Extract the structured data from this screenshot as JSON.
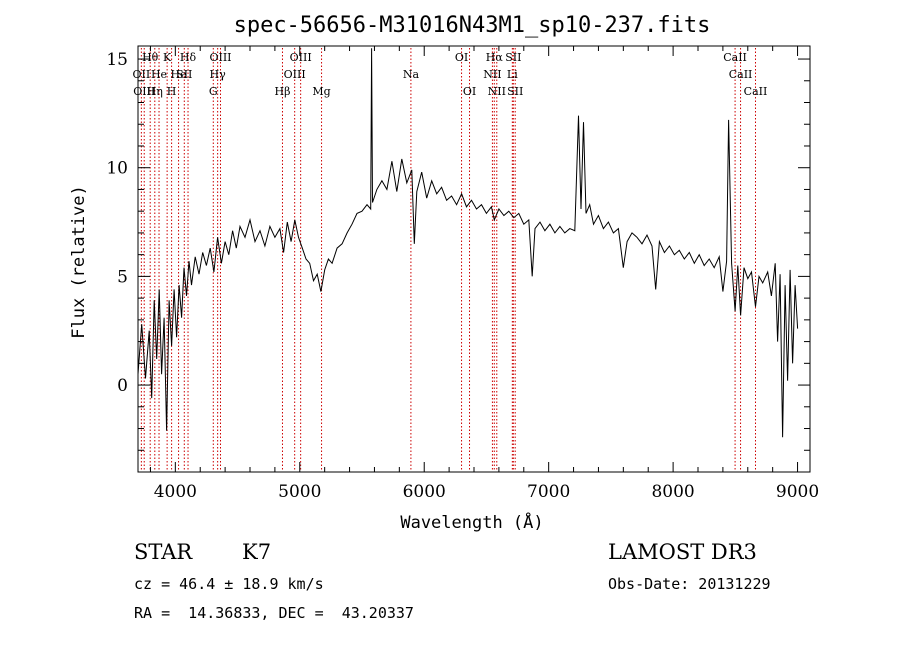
{
  "chart_data": {
    "type": "line",
    "title": "spec-56656-M31016N43M1_sp10-237.fits",
    "xlabel": "Wavelength (Å)",
    "ylabel": "Flux (relative)",
    "xlim": [
      3700,
      9100
    ],
    "ylim": [
      -4,
      15.6
    ],
    "xticks": [
      4000,
      5000,
      6000,
      7000,
      8000,
      9000
    ],
    "xtick_labels": [
      "4000",
      "5000",
      "6000",
      "7000",
      "8000",
      "9000"
    ],
    "yticks": [
      0,
      5,
      10,
      15
    ],
    "ytick_labels": [
      "0",
      "5",
      "10",
      "15"
    ],
    "series": [
      {
        "name": "spectrum",
        "color": "#000000",
        "points": [
          [
            3700,
            0.5
          ],
          [
            3730,
            2.8
          ],
          [
            3760,
            0.3
          ],
          [
            3790,
            2.5
          ],
          [
            3810,
            -0.6
          ],
          [
            3830,
            3.9
          ],
          [
            3850,
            1.2
          ],
          [
            3870,
            4.4
          ],
          [
            3890,
            0.5
          ],
          [
            3910,
            3.1
          ],
          [
            3930,
            -2.1
          ],
          [
            3950,
            3.9
          ],
          [
            3970,
            1.8
          ],
          [
            3990,
            4.4
          ],
          [
            4010,
            2.2
          ],
          [
            4030,
            4.6
          ],
          [
            4050,
            3.1
          ],
          [
            4070,
            5.4
          ],
          [
            4090,
            4.1
          ],
          [
            4110,
            5.7
          ],
          [
            4130,
            4.6
          ],
          [
            4160,
            5.9
          ],
          [
            4190,
            5.1
          ],
          [
            4220,
            6.1
          ],
          [
            4250,
            5.5
          ],
          [
            4280,
            6.3
          ],
          [
            4310,
            5.2
          ],
          [
            4340,
            6.8
          ],
          [
            4370,
            5.6
          ],
          [
            4400,
            6.6
          ],
          [
            4430,
            6.0
          ],
          [
            4460,
            7.1
          ],
          [
            4490,
            6.3
          ],
          [
            4520,
            7.3
          ],
          [
            4560,
            6.8
          ],
          [
            4600,
            7.6
          ],
          [
            4640,
            6.6
          ],
          [
            4680,
            7.1
          ],
          [
            4720,
            6.4
          ],
          [
            4760,
            7.3
          ],
          [
            4800,
            6.8
          ],
          [
            4840,
            7.2
          ],
          [
            4870,
            6.1
          ],
          [
            4900,
            7.5
          ],
          [
            4930,
            6.6
          ],
          [
            4960,
            7.6
          ],
          [
            4990,
            6.8
          ],
          [
            5020,
            6.3
          ],
          [
            5050,
            5.8
          ],
          [
            5080,
            5.6
          ],
          [
            5110,
            4.8
          ],
          [
            5140,
            5.1
          ],
          [
            5170,
            4.3
          ],
          [
            5200,
            5.3
          ],
          [
            5230,
            5.8
          ],
          [
            5260,
            5.6
          ],
          [
            5300,
            6.3
          ],
          [
            5340,
            6.5
          ],
          [
            5380,
            7.0
          ],
          [
            5420,
            7.4
          ],
          [
            5460,
            7.9
          ],
          [
            5500,
            8.0
          ],
          [
            5540,
            8.3
          ],
          [
            5570,
            8.1
          ],
          [
            5577,
            15.5
          ],
          [
            5584,
            8.4
          ],
          [
            5620,
            9.0
          ],
          [
            5660,
            9.4
          ],
          [
            5700,
            9.0
          ],
          [
            5740,
            10.3
          ],
          [
            5780,
            8.9
          ],
          [
            5820,
            10.4
          ],
          [
            5860,
            9.3
          ],
          [
            5900,
            9.9
          ],
          [
            5920,
            6.5
          ],
          [
            5940,
            8.9
          ],
          [
            5980,
            9.8
          ],
          [
            6020,
            8.6
          ],
          [
            6060,
            9.4
          ],
          [
            6100,
            8.8
          ],
          [
            6140,
            9.1
          ],
          [
            6180,
            8.5
          ],
          [
            6220,
            8.7
          ],
          [
            6260,
            8.3
          ],
          [
            6300,
            8.8
          ],
          [
            6340,
            8.2
          ],
          [
            6380,
            8.5
          ],
          [
            6420,
            8.1
          ],
          [
            6460,
            8.3
          ],
          [
            6500,
            7.9
          ],
          [
            6540,
            8.2
          ],
          [
            6563,
            7.6
          ],
          [
            6600,
            8.1
          ],
          [
            6640,
            7.8
          ],
          [
            6680,
            8.0
          ],
          [
            6720,
            7.7
          ],
          [
            6760,
            7.9
          ],
          [
            6800,
            7.4
          ],
          [
            6840,
            7.6
          ],
          [
            6868,
            5.0
          ],
          [
            6890,
            7.2
          ],
          [
            6930,
            7.5
          ],
          [
            6970,
            7.1
          ],
          [
            7010,
            7.4
          ],
          [
            7050,
            7.0
          ],
          [
            7090,
            7.3
          ],
          [
            7130,
            7.0
          ],
          [
            7170,
            7.2
          ],
          [
            7210,
            7.1
          ],
          [
            7240,
            12.4
          ],
          [
            7260,
            8.1
          ],
          [
            7280,
            12.1
          ],
          [
            7300,
            7.9
          ],
          [
            7330,
            8.3
          ],
          [
            7360,
            7.4
          ],
          [
            7400,
            7.8
          ],
          [
            7440,
            7.2
          ],
          [
            7480,
            7.5
          ],
          [
            7520,
            7.0
          ],
          [
            7560,
            7.2
          ],
          [
            7600,
            5.4
          ],
          [
            7630,
            6.6
          ],
          [
            7670,
            7.0
          ],
          [
            7710,
            6.8
          ],
          [
            7750,
            6.5
          ],
          [
            7790,
            6.9
          ],
          [
            7830,
            6.4
          ],
          [
            7860,
            4.4
          ],
          [
            7890,
            6.6
          ],
          [
            7930,
            6.1
          ],
          [
            7970,
            6.4
          ],
          [
            8010,
            6.0
          ],
          [
            8050,
            6.2
          ],
          [
            8090,
            5.8
          ],
          [
            8130,
            6.1
          ],
          [
            8170,
            5.6
          ],
          [
            8210,
            6.0
          ],
          [
            8250,
            5.5
          ],
          [
            8290,
            5.8
          ],
          [
            8330,
            5.4
          ],
          [
            8370,
            5.9
          ],
          [
            8400,
            4.3
          ],
          [
            8430,
            5.7
          ],
          [
            8446,
            12.2
          ],
          [
            8470,
            5.6
          ],
          [
            8498,
            3.4
          ],
          [
            8520,
            5.5
          ],
          [
            8542,
            3.2
          ],
          [
            8570,
            5.4
          ],
          [
            8600,
            4.9
          ],
          [
            8630,
            5.2
          ],
          [
            8662,
            3.6
          ],
          [
            8690,
            5.0
          ],
          [
            8720,
            4.7
          ],
          [
            8760,
            5.2
          ],
          [
            8790,
            4.1
          ],
          [
            8820,
            5.6
          ],
          [
            8840,
            2.0
          ],
          [
            8860,
            5.1
          ],
          [
            8880,
            -2.4
          ],
          [
            8900,
            4.6
          ],
          [
            8920,
            0.2
          ],
          [
            8940,
            5.3
          ],
          [
            8960,
            1.0
          ],
          [
            8980,
            4.6
          ],
          [
            9000,
            2.6
          ]
        ]
      }
    ],
    "line_markers": [
      {
        "wavelength": 3727,
        "label": "OII",
        "row": 1
      },
      {
        "wavelength": 3750,
        "label": "OIII",
        "row": 2
      },
      {
        "wavelength": 3798,
        "label": "Hθ",
        "row": 0
      },
      {
        "wavelength": 3835,
        "label": "Hη",
        "row": 2
      },
      {
        "wavelength": 3869,
        "label": "He",
        "row": 1
      },
      {
        "wavelength": 3934,
        "label": "K",
        "row": 0
      },
      {
        "wavelength": 3970,
        "label": "H",
        "row": 2
      },
      {
        "wavelength": 4026,
        "label": "He",
        "row": 1
      },
      {
        "wavelength": 4072,
        "label": "SII",
        "row": 1
      },
      {
        "wavelength": 4102,
        "label": "Hδ",
        "row": 0
      },
      {
        "wavelength": 4305,
        "label": "G",
        "row": 2
      },
      {
        "wavelength": 4340,
        "label": "Hγ",
        "row": 1
      },
      {
        "wavelength": 4363,
        "label": "OIII",
        "row": 0
      },
      {
        "wavelength": 4861,
        "label": "Hβ",
        "row": 2
      },
      {
        "wavelength": 4959,
        "label": "OIII",
        "row": 1
      },
      {
        "wavelength": 5007,
        "label": "OIII",
        "row": 0
      },
      {
        "wavelength": 5175,
        "label": "Mg",
        "row": 2
      },
      {
        "wavelength": 5893,
        "label": "Na",
        "row": 1
      },
      {
        "wavelength": 6300,
        "label": "OI",
        "row": 0
      },
      {
        "wavelength": 6364,
        "label": "OI",
        "row": 2
      },
      {
        "wavelength": 6548,
        "label": "NII",
        "row": 1
      },
      {
        "wavelength": 6563,
        "label": "Hα",
        "row": 0
      },
      {
        "wavelength": 6583,
        "label": "NII",
        "row": 2
      },
      {
        "wavelength": 6708,
        "label": "Li",
        "row": 1
      },
      {
        "wavelength": 6716,
        "label": "SII",
        "row": 0
      },
      {
        "wavelength": 6731,
        "label": "SII",
        "row": 2
      },
      {
        "wavelength": 8498,
        "label": "CaII",
        "row": 0
      },
      {
        "wavelength": 8542,
        "label": "CaII",
        "row": 1
      },
      {
        "wavelength": 8662,
        "label": "CaII",
        "row": 2
      }
    ],
    "marker_color": "#cc0000"
  },
  "info": {
    "object_class": "STAR",
    "subclass": "K7",
    "survey": "LAMOST DR3",
    "redshift_text": "cz = 46.4 ± 18.9 km/s",
    "obs_date_text": "Obs-Date: 20131229",
    "coords_text": "RA =  14.36833, DEC =  43.20337"
  }
}
